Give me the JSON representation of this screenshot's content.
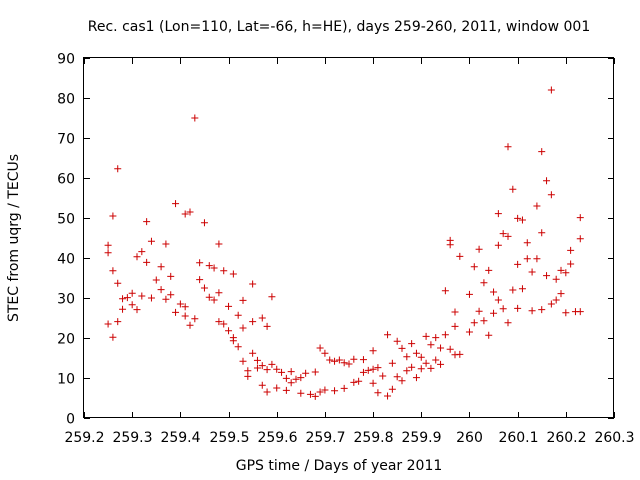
{
  "chart_data": {
    "type": "scatter",
    "title": "Rec. cas1 (Lon=110, Lat=-66, h=HE), days 259-260, 2011, window 001",
    "xlabel": "GPS time / Days of year 2011",
    "ylabel": "STEC from uqrg / TECUs",
    "xlim": [
      259.2,
      260.3
    ],
    "ylim": [
      0,
      90
    ],
    "x_ticks": [
      259.2,
      259.3,
      259.4,
      259.5,
      259.6,
      259.7,
      259.8,
      259.9,
      260,
      260.1,
      260.2,
      260.3
    ],
    "x_tick_labels": [
      "259.2",
      "259.3",
      "259.4",
      "259.5",
      "259.6",
      "259.7",
      "259.8",
      "259.9",
      "260",
      "260.1",
      "260.2",
      "260.3"
    ],
    "y_ticks": [
      0,
      10,
      20,
      30,
      40,
      50,
      60,
      70,
      80,
      90
    ],
    "y_tick_labels": [
      "0",
      "10",
      "20",
      "30",
      "40",
      "50",
      "60",
      "70",
      "80",
      "90"
    ],
    "grid": false,
    "marker": "plus",
    "color": "#cc0000",
    "points": [
      [
        259.25,
        43.2
      ],
      [
        259.25,
        41.3
      ],
      [
        259.25,
        23.5
      ],
      [
        259.26,
        50.5
      ],
      [
        259.26,
        36.8
      ],
      [
        259.26,
        20.2
      ],
      [
        259.27,
        62.3
      ],
      [
        259.27,
        33.7
      ],
      [
        259.27,
        24.1
      ],
      [
        259.28,
        29.8
      ],
      [
        259.28,
        27.2
      ],
      [
        259.29,
        30.1
      ],
      [
        259.3,
        31.2
      ],
      [
        259.3,
        28.3
      ],
      [
        259.31,
        40.3
      ],
      [
        259.31,
        27.1
      ],
      [
        259.32,
        41.6
      ],
      [
        259.32,
        30.5
      ],
      [
        259.33,
        49.1
      ],
      [
        259.33,
        38.9
      ],
      [
        259.34,
        44.2
      ],
      [
        259.34,
        30.0
      ],
      [
        259.35,
        34.5
      ],
      [
        259.36,
        37.8
      ],
      [
        259.36,
        32.1
      ],
      [
        259.37,
        43.5
      ],
      [
        259.37,
        29.7
      ],
      [
        259.38,
        35.4
      ],
      [
        259.38,
        30.8
      ],
      [
        259.39,
        53.6
      ],
      [
        259.39,
        26.4
      ],
      [
        259.4,
        28.5
      ],
      [
        259.41,
        51.0
      ],
      [
        259.41,
        27.8
      ],
      [
        259.41,
        25.5
      ],
      [
        259.42,
        51.5
      ],
      [
        259.42,
        23.2
      ],
      [
        259.43,
        75.0
      ],
      [
        259.43,
        24.8
      ],
      [
        259.44,
        38.8
      ],
      [
        259.44,
        34.6
      ],
      [
        259.45,
        48.8
      ],
      [
        259.45,
        32.5
      ],
      [
        259.46,
        30.2
      ],
      [
        259.46,
        38.1
      ],
      [
        259.47,
        29.5
      ],
      [
        259.47,
        37.5
      ],
      [
        259.48,
        43.5
      ],
      [
        259.48,
        31.3
      ],
      [
        259.48,
        24.1
      ],
      [
        259.49,
        36.8
      ],
      [
        259.49,
        23.5
      ],
      [
        259.5,
        27.9
      ],
      [
        259.5,
        21.8
      ],
      [
        259.51,
        36.0
      ],
      [
        259.51,
        20.1
      ],
      [
        259.51,
        19.3
      ],
      [
        259.52,
        25.7
      ],
      [
        259.52,
        17.8
      ],
      [
        259.53,
        29.4
      ],
      [
        259.53,
        14.2
      ],
      [
        259.53,
        22.5
      ],
      [
        259.54,
        11.8
      ],
      [
        259.54,
        10.4
      ],
      [
        259.55,
        33.5
      ],
      [
        259.55,
        24.1
      ],
      [
        259.55,
        16.2
      ],
      [
        259.56,
        12.5
      ],
      [
        259.56,
        14.4
      ],
      [
        259.57,
        25.0
      ],
      [
        259.57,
        13.1
      ],
      [
        259.57,
        8.2
      ],
      [
        259.58,
        22.9
      ],
      [
        259.58,
        6.5
      ],
      [
        259.58,
        12.1
      ],
      [
        259.59,
        30.3
      ],
      [
        259.59,
        13.4
      ],
      [
        259.6,
        12.2
      ],
      [
        259.6,
        7.5
      ],
      [
        259.61,
        11.4
      ],
      [
        259.62,
        9.9
      ],
      [
        259.62,
        6.9
      ],
      [
        259.63,
        11.6
      ],
      [
        259.63,
        8.8
      ],
      [
        259.64,
        9.7
      ],
      [
        259.65,
        6.2
      ],
      [
        259.65,
        10.1
      ],
      [
        259.66,
        11.2
      ],
      [
        259.67,
        5.9
      ],
      [
        259.68,
        11.5
      ],
      [
        259.68,
        5.4
      ],
      [
        259.69,
        17.5
      ],
      [
        259.69,
        6.5
      ],
      [
        259.7,
        16.2
      ],
      [
        259.7,
        7.0
      ],
      [
        259.71,
        14.5
      ],
      [
        259.72,
        14.2
      ],
      [
        259.72,
        6.8
      ],
      [
        259.73,
        14.5
      ],
      [
        259.74,
        13.8
      ],
      [
        259.74,
        7.4
      ],
      [
        259.75,
        13.5
      ],
      [
        259.76,
        8.9
      ],
      [
        259.76,
        14.7
      ],
      [
        259.77,
        9.2
      ],
      [
        259.78,
        14.6
      ],
      [
        259.78,
        11.4
      ],
      [
        259.79,
        11.9
      ],
      [
        259.8,
        16.8
      ],
      [
        259.8,
        12.2
      ],
      [
        259.8,
        8.7
      ],
      [
        259.81,
        12.6
      ],
      [
        259.81,
        6.3
      ],
      [
        259.82,
        10.5
      ],
      [
        259.83,
        20.8
      ],
      [
        259.83,
        5.5
      ],
      [
        259.84,
        13.7
      ],
      [
        259.84,
        7.2
      ],
      [
        259.85,
        19.2
      ],
      [
        259.85,
        10.3
      ],
      [
        259.86,
        17.4
      ],
      [
        259.86,
        9.3
      ],
      [
        259.87,
        11.8
      ],
      [
        259.87,
        15.3
      ],
      [
        259.88,
        18.6
      ],
      [
        259.88,
        12.7
      ],
      [
        259.89,
        10.1
      ],
      [
        259.89,
        16.2
      ],
      [
        259.9,
        15.2
      ],
      [
        259.9,
        12.3
      ],
      [
        259.91,
        20.4
      ],
      [
        259.91,
        13.7
      ],
      [
        259.92,
        18.3
      ],
      [
        259.92,
        12.4
      ],
      [
        259.93,
        20.1
      ],
      [
        259.93,
        14.5
      ],
      [
        259.94,
        17.5
      ],
      [
        259.94,
        13.4
      ],
      [
        259.95,
        31.8
      ],
      [
        259.95,
        20.8
      ],
      [
        259.96,
        44.4
      ],
      [
        259.96,
        43.3
      ],
      [
        259.96,
        17.2
      ],
      [
        259.97,
        26.5
      ],
      [
        259.97,
        22.9
      ],
      [
        259.97,
        15.8
      ],
      [
        259.98,
        40.4
      ],
      [
        259.98,
        15.9
      ],
      [
        260.0,
        30.9
      ],
      [
        260.0,
        21.5
      ],
      [
        260.01,
        37.8
      ],
      [
        260.01,
        23.8
      ],
      [
        260.02,
        42.2
      ],
      [
        260.02,
        26.7
      ],
      [
        260.03,
        33.8
      ],
      [
        260.03,
        24.3
      ],
      [
        260.04,
        36.9
      ],
      [
        260.04,
        20.7
      ],
      [
        260.05,
        31.5
      ],
      [
        260.05,
        26.2
      ],
      [
        260.06,
        51.1
      ],
      [
        260.06,
        43.2
      ],
      [
        260.06,
        29.5
      ],
      [
        260.07,
        46.1
      ],
      [
        260.07,
        27.3
      ],
      [
        260.08,
        67.8
      ],
      [
        260.08,
        45.4
      ],
      [
        260.08,
        23.8
      ],
      [
        260.09,
        57.2
      ],
      [
        260.09,
        32.0
      ],
      [
        260.1,
        49.9
      ],
      [
        260.1,
        38.4
      ],
      [
        260.1,
        27.4
      ],
      [
        260.11,
        49.5
      ],
      [
        260.11,
        32.3
      ],
      [
        260.12,
        43.8
      ],
      [
        260.12,
        39.8
      ],
      [
        260.13,
        36.5
      ],
      [
        260.13,
        26.8
      ],
      [
        260.14,
        53.0
      ],
      [
        260.14,
        39.8
      ],
      [
        260.15,
        66.6
      ],
      [
        260.15,
        46.3
      ],
      [
        260.15,
        27.1
      ],
      [
        260.16,
        59.3
      ],
      [
        260.16,
        35.6
      ],
      [
        260.17,
        82.0
      ],
      [
        260.17,
        55.8
      ],
      [
        260.17,
        28.5
      ],
      [
        260.18,
        34.7
      ],
      [
        260.18,
        29.5
      ],
      [
        260.19,
        36.9
      ],
      [
        260.19,
        31.1
      ],
      [
        260.2,
        26.3
      ],
      [
        260.2,
        36.3
      ],
      [
        260.21,
        41.9
      ],
      [
        260.21,
        38.5
      ],
      [
        260.22,
        26.6
      ],
      [
        260.23,
        50.1
      ],
      [
        260.23,
        44.8
      ],
      [
        260.23,
        26.6
      ]
    ]
  }
}
